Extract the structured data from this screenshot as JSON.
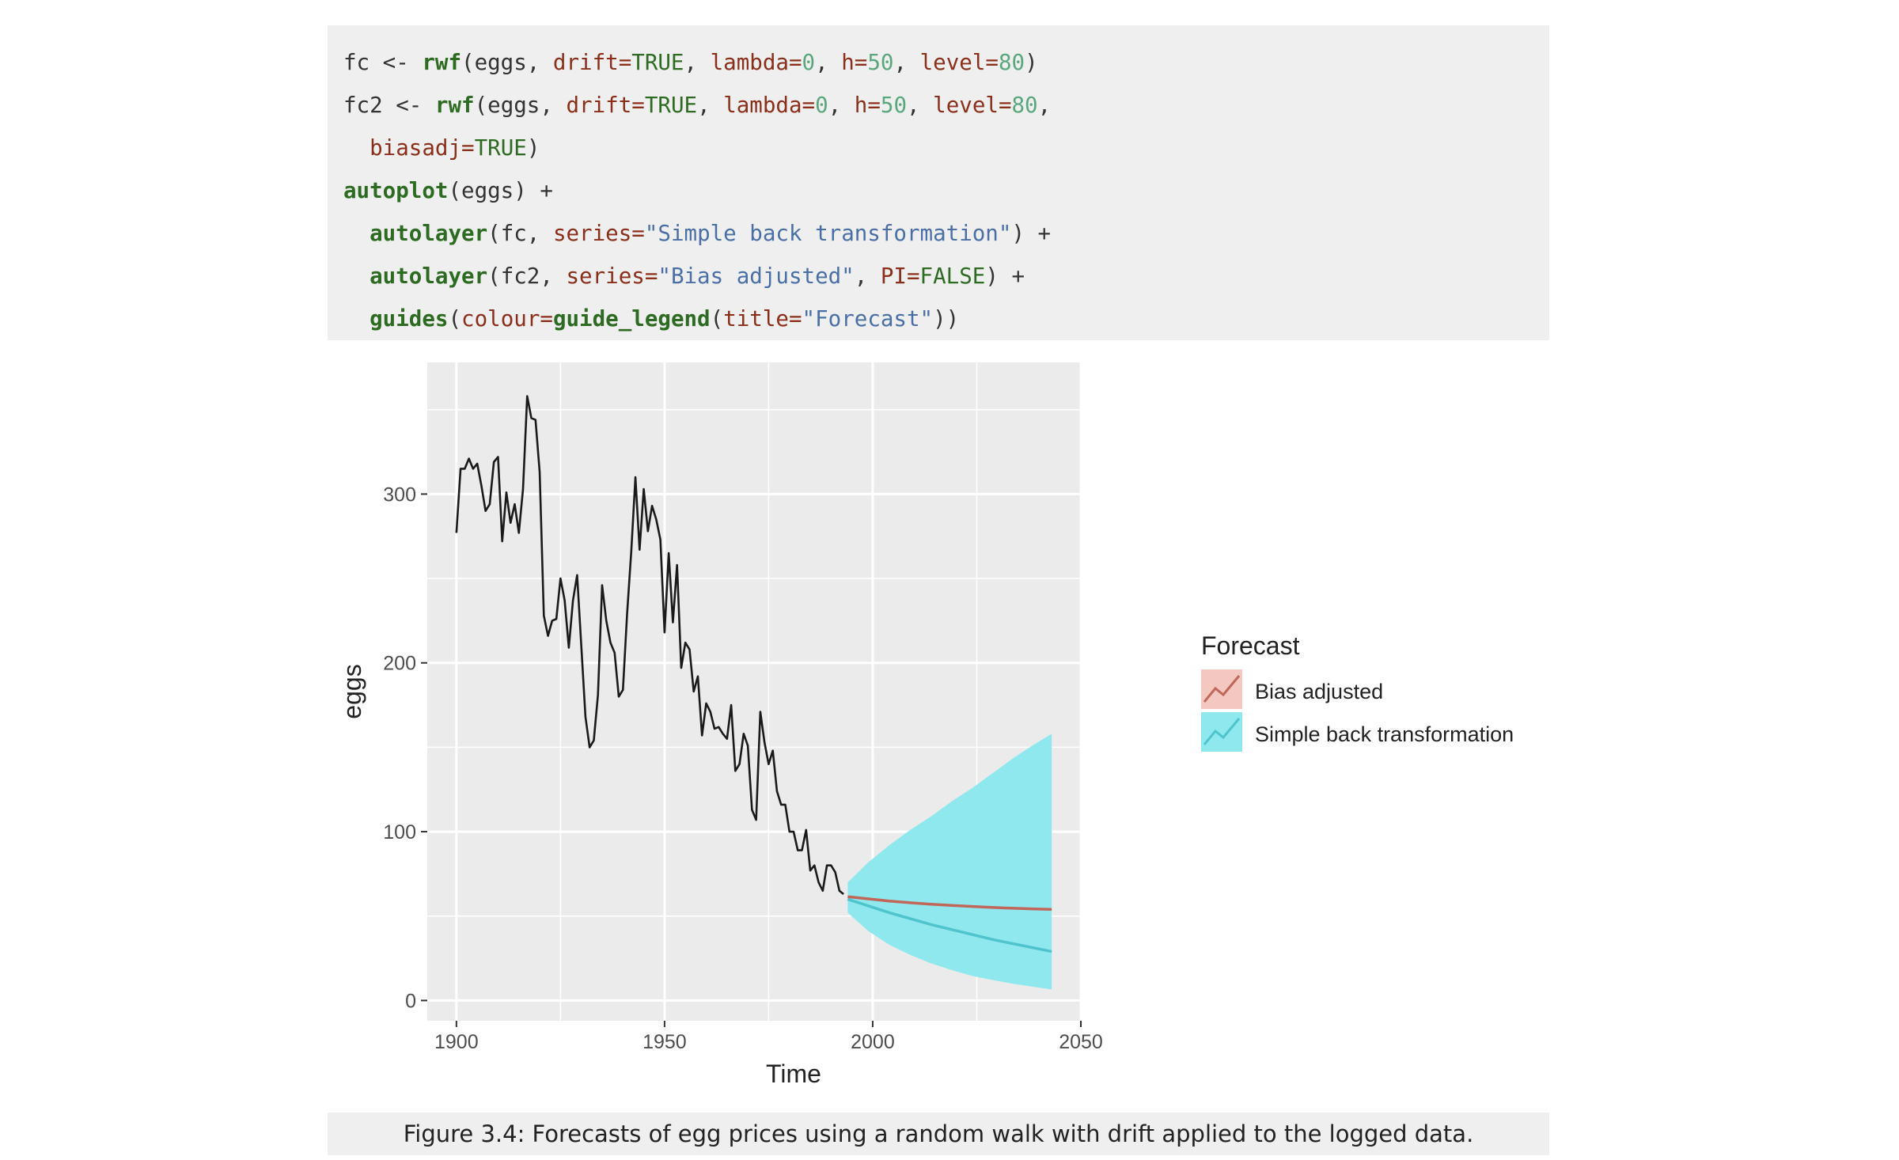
{
  "code": {
    "lines": [
      [
        {
          "t": "fc <- ",
          "c": "p"
        },
        {
          "t": "rwf",
          "c": "k"
        },
        {
          "t": "(eggs, ",
          "c": "p"
        },
        {
          "t": "drift=",
          "c": "a"
        },
        {
          "t": "TRUE",
          "c": "v"
        },
        {
          "t": ", ",
          "c": "p"
        },
        {
          "t": "lambda=",
          "c": "a"
        },
        {
          "t": "0",
          "c": "n"
        },
        {
          "t": ", ",
          "c": "p"
        },
        {
          "t": "h=",
          "c": "a"
        },
        {
          "t": "50",
          "c": "n"
        },
        {
          "t": ", ",
          "c": "p"
        },
        {
          "t": "level=",
          "c": "a"
        },
        {
          "t": "80",
          "c": "n"
        },
        {
          "t": ")",
          "c": "p"
        }
      ],
      [
        {
          "t": "fc2 <- ",
          "c": "p"
        },
        {
          "t": "rwf",
          "c": "k"
        },
        {
          "t": "(eggs, ",
          "c": "p"
        },
        {
          "t": "drift=",
          "c": "a"
        },
        {
          "t": "TRUE",
          "c": "v"
        },
        {
          "t": ", ",
          "c": "p"
        },
        {
          "t": "lambda=",
          "c": "a"
        },
        {
          "t": "0",
          "c": "n"
        },
        {
          "t": ", ",
          "c": "p"
        },
        {
          "t": "h=",
          "c": "a"
        },
        {
          "t": "50",
          "c": "n"
        },
        {
          "t": ", ",
          "c": "p"
        },
        {
          "t": "level=",
          "c": "a"
        },
        {
          "t": "80",
          "c": "n"
        },
        {
          "t": ",",
          "c": "p"
        }
      ],
      [
        {
          "t": "  ",
          "c": "p"
        },
        {
          "t": "biasadj=",
          "c": "a"
        },
        {
          "t": "TRUE",
          "c": "v"
        },
        {
          "t": ")",
          "c": "p"
        }
      ],
      [
        {
          "t": "autoplot",
          "c": "k"
        },
        {
          "t": "(eggs) +",
          "c": "p"
        }
      ],
      [
        {
          "t": "  ",
          "c": "p"
        },
        {
          "t": "autolayer",
          "c": "k"
        },
        {
          "t": "(fc, ",
          "c": "p"
        },
        {
          "t": "series=",
          "c": "a"
        },
        {
          "t": "\"Simple back transformation\"",
          "c": "s"
        },
        {
          "t": ") +",
          "c": "p"
        }
      ],
      [
        {
          "t": "  ",
          "c": "p"
        },
        {
          "t": "autolayer",
          "c": "k"
        },
        {
          "t": "(fc2, ",
          "c": "p"
        },
        {
          "t": "series=",
          "c": "a"
        },
        {
          "t": "\"Bias adjusted\"",
          "c": "s"
        },
        {
          "t": ", ",
          "c": "p"
        },
        {
          "t": "PI=",
          "c": "a"
        },
        {
          "t": "FALSE",
          "c": "v"
        },
        {
          "t": ") +",
          "c": "p"
        }
      ],
      [
        {
          "t": "  ",
          "c": "p"
        },
        {
          "t": "guides",
          "c": "k"
        },
        {
          "t": "(",
          "c": "p"
        },
        {
          "t": "colour=",
          "c": "a"
        },
        {
          "t": "guide_legend",
          "c": "k"
        },
        {
          "t": "(",
          "c": "p"
        },
        {
          "t": "title=",
          "c": "a"
        },
        {
          "t": "\"Forecast\"",
          "c": "s"
        },
        {
          "t": "))",
          "c": "p"
        }
      ]
    ]
  },
  "caption": "Figure 3.4: Forecasts of egg prices using a random walk with drift applied to the logged data.",
  "colors": {
    "panel": "#ebebeb",
    "grid": "#ffffff",
    "history": "#1a1a1a",
    "bias": "#c0675a",
    "bias_fill": "#f4c7c0",
    "simple": "#4fc4cc",
    "simple_fill": "#8fe8ee"
  },
  "chart_data": {
    "type": "line",
    "xlabel": "Time",
    "ylabel": "eggs",
    "xlim": [
      1893,
      2050
    ],
    "ylim": [
      -12,
      378
    ],
    "xticks": [
      1900,
      1950,
      2000,
      2050
    ],
    "yticks": [
      0,
      100,
      200,
      300
    ],
    "grid": true,
    "legend": {
      "title": "Forecast",
      "placement": "right",
      "entries": [
        "Bias adjusted",
        "Simple back transformation"
      ]
    },
    "history": {
      "x": [
        1900,
        1901,
        1902,
        1903,
        1904,
        1905,
        1906,
        1907,
        1908,
        1909,
        1910,
        1911,
        1912,
        1913,
        1914,
        1915,
        1916,
        1917,
        1918,
        1919,
        1920,
        1921,
        1922,
        1923,
        1924,
        1925,
        1926,
        1927,
        1928,
        1929,
        1930,
        1931,
        1932,
        1933,
        1934,
        1935,
        1936,
        1937,
        1938,
        1939,
        1940,
        1941,
        1942,
        1943,
        1944,
        1945,
        1946,
        1947,
        1948,
        1949,
        1950,
        1951,
        1952,
        1953,
        1954,
        1955,
        1956,
        1957,
        1958,
        1959,
        1960,
        1961,
        1962,
        1963,
        1964,
        1965,
        1966,
        1967,
        1968,
        1969,
        1970,
        1971,
        1972,
        1973,
        1974,
        1975,
        1976,
        1977,
        1978,
        1979,
        1980,
        1981,
        1982,
        1983,
        1984,
        1985,
        1986,
        1987,
        1988,
        1989,
        1990,
        1991,
        1992,
        1993
      ],
      "y": [
        277,
        315,
        315,
        321,
        315,
        318,
        305,
        290,
        294,
        319,
        322,
        272,
        301,
        283,
        294,
        277,
        303,
        358,
        345,
        344,
        313,
        228,
        216,
        225,
        226,
        250,
        237,
        209,
        237,
        252,
        210,
        168,
        150,
        154,
        181,
        246,
        225,
        212,
        206,
        180,
        184,
        229,
        266,
        310,
        267,
        303,
        278,
        293,
        285,
        273,
        218,
        265,
        224,
        258,
        197,
        212,
        208,
        183,
        192,
        157,
        176,
        171,
        161,
        162,
        158,
        155,
        175,
        136,
        140,
        158,
        151,
        113,
        107,
        171,
        153,
        140,
        148,
        124,
        116,
        116,
        100,
        100,
        89,
        89,
        101,
        77,
        80,
        70,
        65,
        80,
        80,
        76,
        65,
        63
      ]
    },
    "series": [
      {
        "name": "Bias adjusted",
        "x": [
          1994,
          1999,
          2004,
          2009,
          2014,
          2019,
          2024,
          2029,
          2034,
          2039,
          2043
        ],
        "values": [
          61.5,
          60.2,
          58.9,
          57.9,
          57.0,
          56.3,
          55.7,
          55.1,
          54.6,
          54.2,
          54.0
        ]
      },
      {
        "name": "Simple back transformation",
        "x": [
          1994,
          1999,
          2004,
          2009,
          2014,
          2019,
          2024,
          2029,
          2034,
          2039,
          2043
        ],
        "values": [
          60.0,
          56.0,
          52.0,
          48.5,
          45.0,
          42.0,
          39.0,
          36.0,
          33.5,
          31.0,
          29.0
        ],
        "pi_lower": [
          52.0,
          41.0,
          33.0,
          27.0,
          22.0,
          18.0,
          14.5,
          12.0,
          9.8,
          8.0,
          6.5
        ],
        "pi_upper": [
          70.0,
          82.0,
          92.0,
          101.0,
          109.0,
          118.0,
          126.0,
          135.0,
          144.0,
          152.0,
          158.0
        ]
      }
    ]
  }
}
